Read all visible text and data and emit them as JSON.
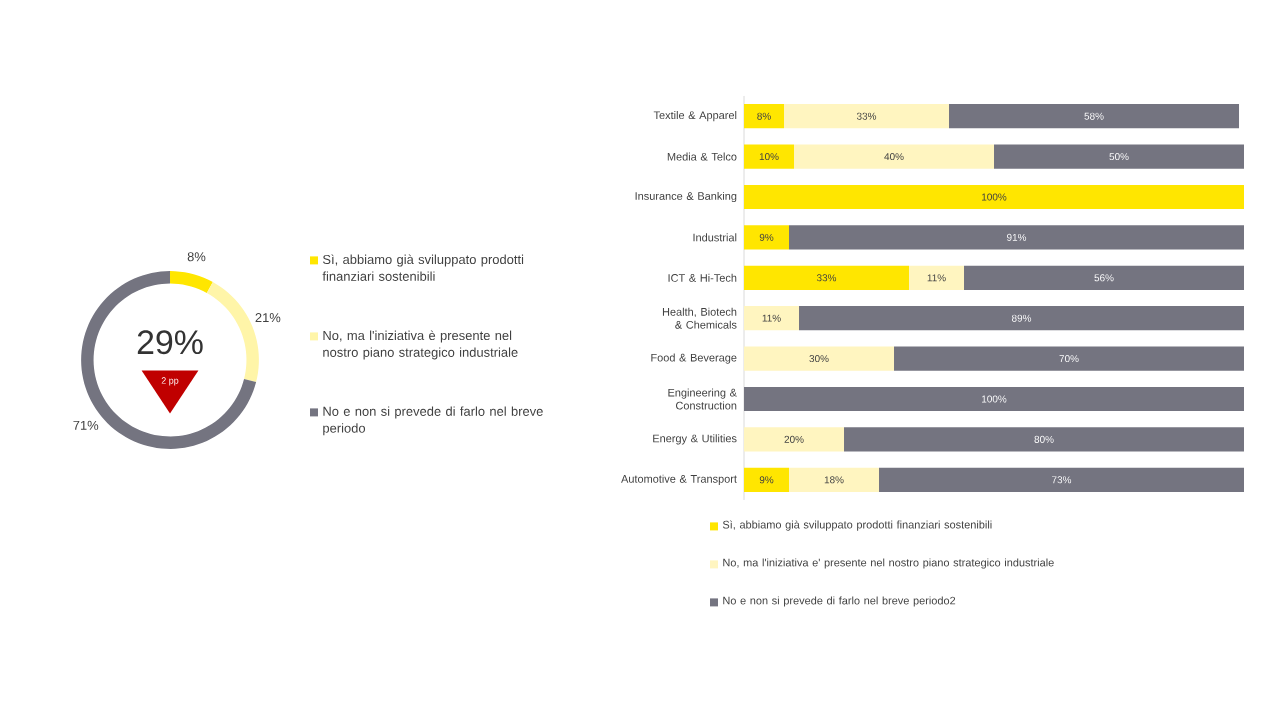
{
  "chart_data": [
    {
      "type": "donut",
      "categories": [
        "Sì, abbiamo già sviluppato prodotti finanziari sostenibili",
        "No, ma l'iniziativa è presente nel nostro piano strategico industriale",
        "No e non si prevede di farlo nel breve periodo"
      ],
      "values": [
        8,
        21,
        71
      ],
      "value_labels": [
        "8%",
        "21%",
        "71%"
      ],
      "colors": [
        "#ffe600",
        "#fff5a8",
        "#747480"
      ],
      "legend": "right",
      "annotations": [
        "29%",
        "2 pp"
      ]
    },
    {
      "type": "bar",
      "orientation": "horizontal",
      "stacked": true,
      "legend": "bottom",
      "tick_labels": "y",
      "xlim": [
        0,
        100
      ],
      "categories": [
        "Textile & Apparel",
        "Media & Telco",
        "Insurance & Banking",
        "Industrial",
        "ICT & Hi-Tech",
        "Health, Biotech & Chemicals",
        "Food & Beverage",
        "Engineering & Construction",
        "Energy & Utilities",
        "Automotive & Transport"
      ],
      "series": [
        {
          "name": "Sì, abbiamo già sviluppato prodotti finanziari sostenibili",
          "color": "#ffe600",
          "values": [
            8,
            10,
            100,
            9,
            33,
            null,
            null,
            null,
            null,
            9
          ],
          "value_labels": [
            "8%",
            "10%",
            "100%",
            "9%",
            "33%",
            null,
            null,
            null,
            null,
            "9%"
          ]
        },
        {
          "name": "No, ma l'iniziativa e' presente nel nostro piano strategico industriale",
          "color": "#fff5c0",
          "values": [
            33,
            40,
            null,
            null,
            11,
            11,
            30,
            null,
            20,
            18
          ],
          "value_labels": [
            "33%",
            "40%",
            null,
            null,
            "11%",
            "11%",
            "30%",
            null,
            "20%",
            "18%"
          ]
        },
        {
          "name": "No e non si prevede di farlo nel breve periodo2",
          "color": "#747480",
          "values": [
            58,
            50,
            null,
            91,
            56,
            89,
            70,
            100,
            80,
            73
          ],
          "value_labels": [
            "58%",
            "50%",
            null,
            "91%",
            "56%",
            "89%",
            "70%",
            "100%",
            "80%",
            "73%"
          ]
        }
      ]
    }
  ]
}
